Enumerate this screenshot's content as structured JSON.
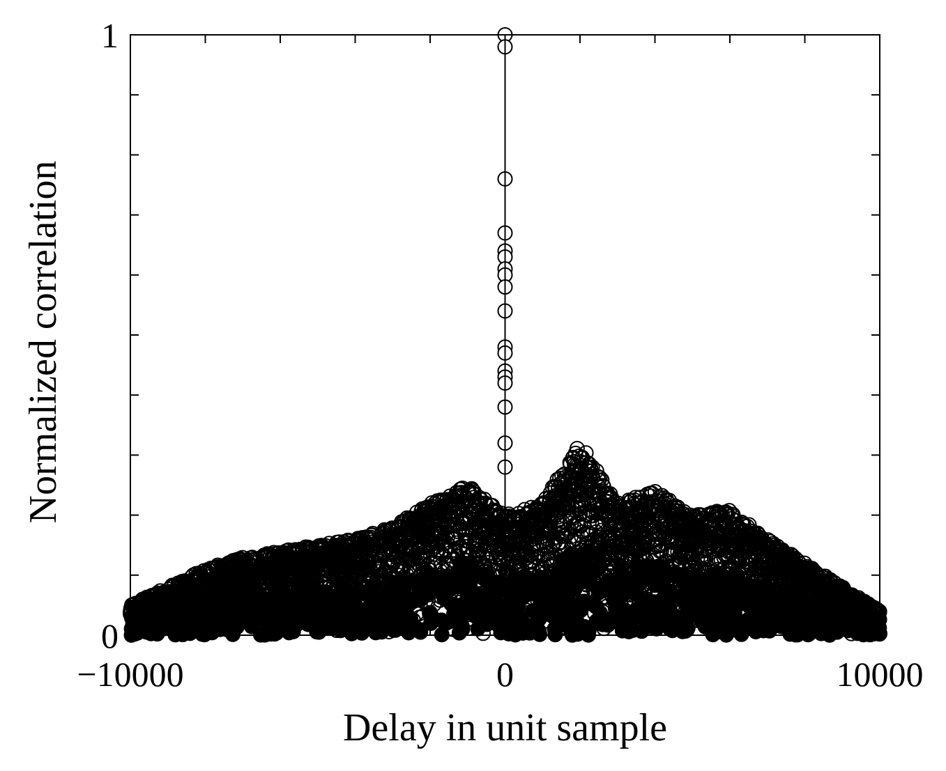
{
  "chart_data": {
    "type": "scatter",
    "title": "",
    "xlabel": "Delay in unit sample",
    "ylabel": "Normalized correlation",
    "xlim": [
      -10000,
      10000
    ],
    "ylim": [
      0,
      1
    ],
    "x_tick_labels": [
      "−10000",
      "0",
      "10000"
    ],
    "x_tick_values": [
      -10000,
      0,
      10000
    ],
    "y_tick_labels": [
      "0",
      "1"
    ],
    "y_tick_values": [
      0,
      1
    ],
    "grid": false,
    "legend": "none",
    "marker": "open-circle",
    "color": "#000000",
    "stem_at_zero": true,
    "peak_points": {
      "x": [
        0,
        0,
        0,
        0,
        0,
        0,
        0,
        0,
        0,
        0,
        0,
        0,
        0,
        0,
        0,
        0,
        0,
        0
      ],
      "y": [
        1.0,
        0.98,
        0.76,
        0.67,
        0.64,
        0.63,
        0.61,
        0.6,
        0.58,
        0.54,
        0.48,
        0.47,
        0.44,
        0.43,
        0.42,
        0.38,
        0.32,
        0.28
      ]
    },
    "background_envelope": {
      "x": [
        -10000,
        -9000,
        -8000,
        -7000,
        -6000,
        -5000,
        -4000,
        -3000,
        -2000,
        -1000,
        0,
        1000,
        2000,
        3000,
        4000,
        5000,
        6000,
        7000,
        8000,
        9000,
        10000
      ],
      "y": [
        0.05,
        0.08,
        0.11,
        0.13,
        0.14,
        0.15,
        0.16,
        0.18,
        0.22,
        0.25,
        0.2,
        0.22,
        0.32,
        0.22,
        0.24,
        0.2,
        0.21,
        0.16,
        0.12,
        0.08,
        0.04
      ]
    }
  }
}
